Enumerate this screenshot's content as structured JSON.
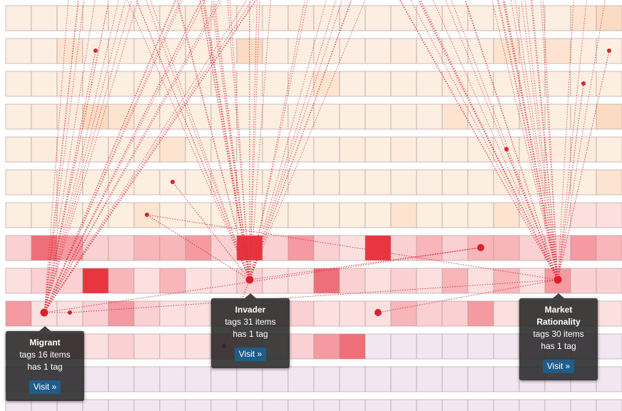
{
  "tooltips": [
    {
      "title": "Migrant",
      "tags": "tags 16 items",
      "has": "has 1 tag",
      "button": "Visit »"
    },
    {
      "title": "Invader",
      "tags": "tags 31 items",
      "has": "has 1 tag",
      "button": "Visit »"
    },
    {
      "title": "Market Rationality",
      "tags": "tags 30 items",
      "has": "has 1 tag",
      "button": "Visit »"
    }
  ]
}
